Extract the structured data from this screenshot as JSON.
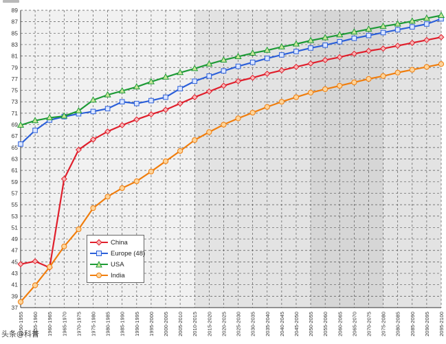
{
  "chart_data": {
    "type": "line",
    "title": "",
    "xlabel": "",
    "ylabel": "",
    "ylim": [
      37,
      89
    ],
    "yticks": [
      37,
      39,
      41,
      43,
      45,
      47,
      49,
      51,
      53,
      55,
      57,
      59,
      61,
      63,
      65,
      67,
      69,
      71,
      73,
      75,
      77,
      79,
      81,
      83,
      85,
      87,
      89
    ],
    "grid": true,
    "legend_position": "center-left",
    "categories": [
      "1950-1955",
      "1955-1960",
      "1960-1965",
      "1965-1970",
      "1970-1975",
      "1975-1980",
      "1980-1985",
      "1985-1990",
      "1990-1995",
      "1995-2000",
      "2000-2005",
      "2005-2010",
      "2010-2015",
      "2015-2020",
      "2020-2025",
      "2025-2030",
      "2030-2035",
      "2035-2040",
      "2040-2045",
      "2045-2050",
      "2050-2055",
      "2055-2060",
      "2060-2065",
      "2065-2070",
      "2070-2075",
      "2075-2080",
      "2080-2085",
      "2085-2090",
      "2090-2095",
      "2095-2100"
    ],
    "series": [
      {
        "name": "China",
        "color": "#e01e2b",
        "marker": "diamond",
        "values": [
          44.6,
          45.1,
          44.0,
          59.5,
          64.6,
          66.4,
          67.8,
          68.9,
          69.9,
          70.8,
          71.6,
          72.7,
          73.8,
          74.8,
          75.8,
          76.6,
          77.2,
          77.9,
          78.5,
          79.1,
          79.7,
          80.3,
          80.8,
          81.4,
          81.9,
          82.3,
          82.8,
          83.3,
          83.8,
          84.3
        ]
      },
      {
        "name": "Europe (48)",
        "color": "#2b5fd9",
        "marker": "square",
        "values": [
          65.6,
          68.0,
          69.8,
          70.4,
          70.9,
          71.3,
          71.8,
          73.0,
          72.7,
          73.2,
          73.8,
          75.3,
          76.6,
          77.5,
          78.4,
          79.2,
          79.9,
          80.6,
          81.2,
          81.8,
          82.4,
          82.9,
          83.5,
          84.1,
          84.6,
          85.1,
          85.6,
          86.1,
          86.6,
          87.5
        ]
      },
      {
        "name": "USA",
        "color": "#1d9a36",
        "marker": "triangle",
        "values": [
          68.9,
          69.7,
          70.2,
          70.5,
          71.4,
          73.3,
          74.2,
          74.9,
          75.6,
          76.5,
          77.3,
          78.1,
          78.8,
          79.6,
          80.3,
          80.9,
          81.5,
          82.0,
          82.6,
          83.1,
          83.7,
          84.2,
          84.7,
          85.2,
          85.7,
          86.2,
          86.6,
          87.1,
          87.6,
          88.1
        ]
      },
      {
        "name": "India",
        "color": "#f07d0c",
        "marker": "circle",
        "values": [
          38.0,
          40.9,
          44.1,
          47.7,
          50.7,
          54.4,
          56.4,
          57.9,
          59.1,
          60.8,
          62.6,
          64.4,
          66.3,
          67.7,
          69.0,
          70.1,
          71.1,
          72.1,
          73.0,
          73.8,
          74.6,
          75.2,
          75.8,
          76.4,
          77.0,
          77.5,
          78.1,
          78.6,
          79.1,
          79.6
        ]
      }
    ]
  },
  "watermark": "头条@科普",
  "colors": {
    "plot_background": "#f1f1f1",
    "projection_band_light": "#e3e3e3",
    "projection_band_dark": "#d6d6d6",
    "grid": "#555555"
  }
}
